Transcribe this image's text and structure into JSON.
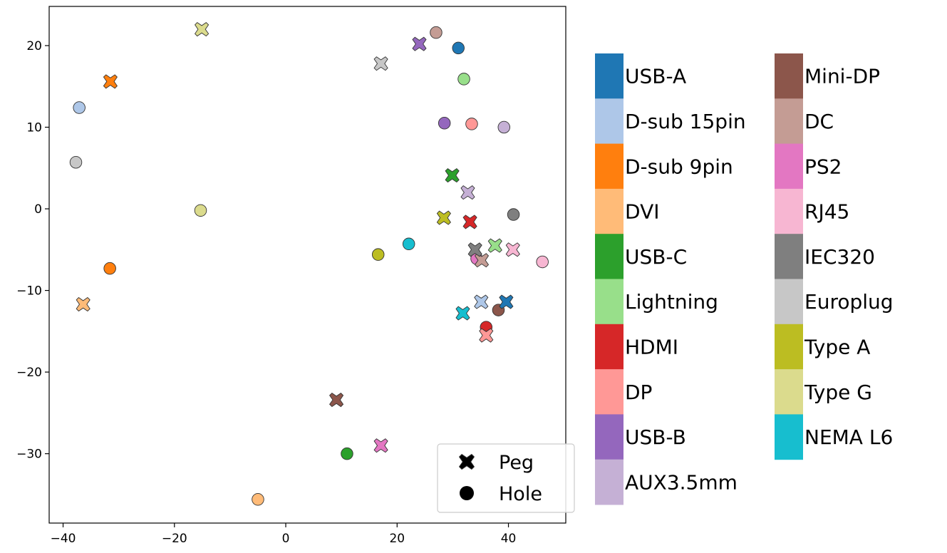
{
  "chart_data": {
    "type": "scatter",
    "title": "",
    "xlabel": "",
    "ylabel": "",
    "xlim": [
      -42.5,
      50.3
    ],
    "ylim": [
      -38.5,
      24.8
    ],
    "xticks": [
      -40,
      -20,
      0,
      20,
      40
    ],
    "yticks": [
      20,
      10,
      0,
      -10,
      -20,
      -30
    ],
    "xtick_labels": [
      "−40",
      "−20",
      "0",
      "20",
      "40"
    ],
    "ytick_labels": [
      "20",
      "10",
      "0",
      "−10",
      "−20",
      "−30"
    ],
    "marker_legend": [
      {
        "label": "Peg",
        "shape": "x"
      },
      {
        "label": "Hole",
        "shape": "circle"
      }
    ],
    "series": [
      {
        "name": "USB-A",
        "color": "#1f77b4",
        "peg": [
          39.6,
          -11.4
        ],
        "hole": [
          31,
          19.7
        ]
      },
      {
        "name": "D-sub 15pin",
        "color": "#aec7e8",
        "peg": [
          35.1,
          -11.4
        ],
        "hole": [
          -37.1,
          12.4
        ]
      },
      {
        "name": "D-sub 9pin",
        "color": "#ff7f0e",
        "peg": [
          -31.5,
          15.6
        ],
        "hole": [
          -31.6,
          -7.3
        ]
      },
      {
        "name": "DVI",
        "color": "#ffbb78",
        "peg": [
          -36.4,
          -11.7
        ],
        "hole": [
          -5,
          -35.6
        ]
      },
      {
        "name": "USB-C",
        "color": "#2ca02c",
        "peg": [
          29.9,
          4.1
        ],
        "hole": [
          11,
          -30
        ]
      },
      {
        "name": "Lightning",
        "color": "#98df8a",
        "peg": [
          37.6,
          -4.5
        ],
        "hole": [
          32,
          15.9
        ]
      },
      {
        "name": "HDMI",
        "color": "#d62728",
        "peg": [
          33.1,
          -1.6
        ],
        "hole": [
          36,
          -14.5
        ]
      },
      {
        "name": "DP",
        "color": "#ff9896",
        "peg": [
          36,
          -15.5
        ],
        "hole": [
          33.4,
          10.4
        ]
      },
      {
        "name": "USB-B",
        "color": "#9467bd",
        "peg": [
          24,
          20.2
        ],
        "hole": [
          28.5,
          10.5
        ]
      },
      {
        "name": "AUX3.5mm",
        "color": "#c5b0d5",
        "peg": [
          32.7,
          2
        ],
        "hole": [
          39.2,
          10
        ]
      },
      {
        "name": "Mini-DP",
        "color": "#8c564b",
        "peg": [
          9.1,
          -23.4
        ],
        "hole": [
          38.2,
          -12.4
        ]
      },
      {
        "name": "DC",
        "color": "#c49c94",
        "peg": [
          35.2,
          -6.3
        ],
        "hole": [
          27,
          21.6
        ]
      },
      {
        "name": "PS2",
        "color": "#e377c2",
        "peg": [
          17.1,
          -29
        ],
        "hole": [
          34.3,
          -6.1
        ]
      },
      {
        "name": "RJ45",
        "color": "#f7b6d2",
        "peg": [
          40.8,
          -5
        ],
        "hole": [
          46.1,
          -6.5
        ]
      },
      {
        "name": "IEC320",
        "color": "#7f7f7f",
        "peg": [
          34,
          -5
        ],
        "hole": [
          40.9,
          -0.7
        ]
      },
      {
        "name": "Europlug",
        "color": "#c7c7c7",
        "peg": [
          17.1,
          17.8
        ],
        "hole": [
          -37.7,
          5.7
        ]
      },
      {
        "name": "Type A",
        "color": "#bcbd22",
        "peg": [
          28.4,
          -1.1
        ],
        "hole": [
          16.6,
          -5.6
        ]
      },
      {
        "name": "Type G",
        "color": "#dbdb8d",
        "peg": [
          -15.1,
          22
        ],
        "hole": [
          -15.3,
          -0.2
        ]
      },
      {
        "name": "NEMA L6",
        "color": "#17becf",
        "peg": [
          31.8,
          -12.8
        ],
        "hole": [
          22.1,
          -4.3
        ]
      }
    ]
  }
}
